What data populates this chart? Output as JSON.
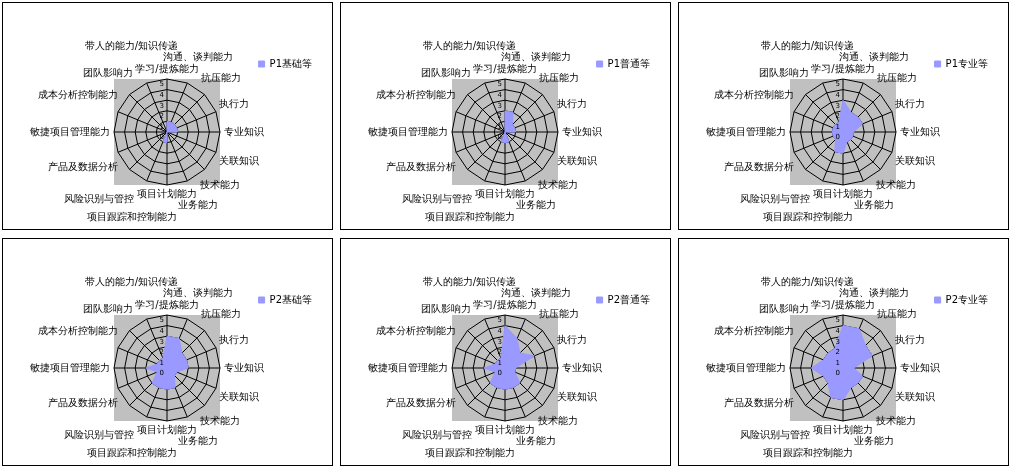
{
  "chart_data": [
    {
      "type": "radar",
      "categories": [
        "学习/提炼能力",
        "沟通、谈判能力",
        "抗压能力",
        "执行力",
        "专业知识",
        "关联知识",
        "技术能力",
        "业务能力",
        "项目计划能力",
        "项目跟踪和控制能力",
        "风险识别与管控",
        "产品及数据分析",
        "敏捷项目管理能力",
        "成本分析控制能力",
        "团队影响力",
        "带人的能力/知识传递"
      ],
      "series": [
        {
          "name": "P1基础等",
          "color": "#9999ff",
          "values": [
            1,
            1,
            1,
            1,
            1,
            0,
            0,
            0,
            1,
            1,
            0,
            0,
            0,
            0,
            0,
            0
          ]
        }
      ],
      "ylim": [
        0,
        5
      ],
      "yticks": [
        0,
        1,
        2,
        3,
        4,
        5
      ],
      "grid": true,
      "legend": "top right"
    },
    {
      "type": "radar",
      "categories": [
        "学习/提炼能力",
        "沟通、谈判能力",
        "抗压能力",
        "执行力",
        "专业知识",
        "关联知识",
        "技术能力",
        "业务能力",
        "项目计划能力",
        "项目跟踪和控制能力",
        "风险识别与管控",
        "产品及数据分析",
        "敏捷项目管理能力",
        "成本分析控制能力",
        "团队影响力",
        "带人的能力/知识传递"
      ],
      "series": [
        {
          "name": "P1普通等",
          "color": "#9999ff",
          "values": [
            2,
            2,
            1,
            1,
            1,
            0,
            0,
            1,
            1,
            1,
            0,
            0,
            0,
            0,
            0,
            0
          ]
        }
      ],
      "ylim": [
        0,
        5
      ],
      "yticks": [
        0,
        1,
        2,
        3,
        4,
        5
      ],
      "grid": true,
      "legend": "top right"
    },
    {
      "type": "radar",
      "categories": [
        "学习/提炼能力",
        "沟通、谈判能力",
        "抗压能力",
        "执行力",
        "专业知识",
        "关联知识",
        "技术能力",
        "业务能力",
        "项目计划能力",
        "项目跟踪和控制能力",
        "风险识别与管控",
        "产品及数据分析",
        "敏捷项目管理能力",
        "成本分析控制能力",
        "团队影响力",
        "带人的能力/知识传递"
      ],
      "series": [
        {
          "name": "P1专业等",
          "color": "#9999ff",
          "values": [
            3,
            2,
            2,
            2,
            1,
            1,
            1,
            1,
            2,
            2,
            1,
            1,
            1,
            1,
            1,
            1
          ]
        }
      ],
      "ylim": [
        0,
        5
      ],
      "yticks": [
        0,
        1,
        2,
        3,
        4,
        5
      ],
      "grid": true,
      "legend": "top right"
    },
    {
      "type": "radar",
      "categories": [
        "学习/提炼能力",
        "沟通、谈判能力",
        "抗压能力",
        "执行力",
        "专业知识",
        "关联知识",
        "技术能力",
        "业务能力",
        "项目计划能力",
        "项目跟踪和控制能力",
        "风险识别与管控",
        "产品及数据分析",
        "敏捷项目管理能力",
        "成本分析控制能力",
        "团队影响力",
        "带人的能力/知识传递"
      ],
      "series": [
        {
          "name": "P2基础等",
          "color": "#9999ff",
          "values": [
            3,
            3,
            2,
            2,
            2,
            1,
            1,
            2,
            2,
            2,
            2,
            1,
            2,
            1,
            1,
            1
          ]
        }
      ],
      "ylim": [
        0,
        5
      ],
      "yticks": [
        0,
        1,
        2,
        3,
        4,
        5
      ],
      "grid": true,
      "legend": "top right"
    },
    {
      "type": "radar",
      "categories": [
        "学习/提炼能力",
        "沟通、谈判能力",
        "抗压能力",
        "执行力",
        "专业知识",
        "关联知识",
        "技术能力",
        "业务能力",
        "项目计划能力",
        "项目跟踪和控制能力",
        "风险识别与管控",
        "产品及数据分析",
        "敏捷项目管理能力",
        "成本分析控制能力",
        "团队影响力",
        "带人的能力/知识传递"
      ],
      "series": [
        {
          "name": "P2普通等",
          "color": "#9999ff",
          "values": [
            4,
            3,
            2,
            3,
            1,
            1,
            2,
            2,
            2,
            2,
            2,
            1,
            2,
            1,
            1,
            1
          ]
        }
      ],
      "ylim": [
        0,
        5
      ],
      "yticks": [
        0,
        1,
        2,
        3,
        4,
        5
      ],
      "grid": true,
      "legend": "top right"
    },
    {
      "type": "radar",
      "categories": [
        "学习/提炼能力",
        "沟通、谈判能力",
        "抗压能力",
        "执行力",
        "专业知识",
        "关联知识",
        "技术能力",
        "业务能力",
        "项目计划能力",
        "项目跟踪和控制能力",
        "风险识别与管控",
        "产品及数据分析",
        "敏捷项目管理能力",
        "成本分析控制能力",
        "团队影响力",
        "带人的能力/知识传递"
      ],
      "series": [
        {
          "name": "P2专业等",
          "color": "#9999ff",
          "values": [
            4,
            4,
            3,
            3,
            1,
            2,
            2,
            2,
            3,
            3,
            2,
            2,
            3,
            2,
            2,
            2
          ]
        }
      ],
      "ylim": [
        0,
        5
      ],
      "yticks": [
        0,
        1,
        2,
        3,
        4,
        5
      ],
      "grid": true,
      "legend": "top right"
    }
  ]
}
